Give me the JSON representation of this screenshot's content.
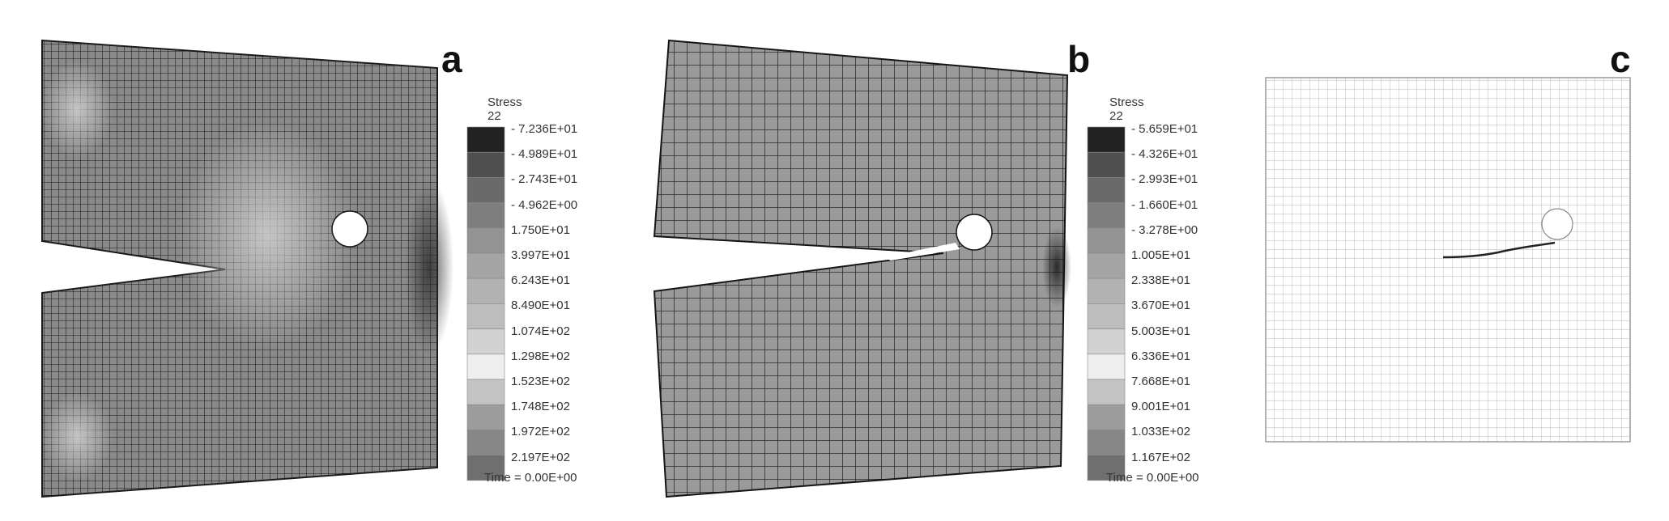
{
  "panels": [
    {
      "label": "a",
      "legend": {
        "title": "Stress 22",
        "values": [
          "- 7.236E+01",
          "- 4.989E+01",
          "- 2.743E+01",
          "- 4.962E+00",
          "1.750E+01",
          "3.997E+01",
          "6.243E+01",
          "8.490E+01",
          "1.074E+02",
          "1.298E+02",
          "1.523E+02",
          "1.748E+02",
          "1.972E+02",
          "2.197E+02"
        ],
        "time": "Time = 0.00E+00"
      }
    },
    {
      "label": "b",
      "legend": {
        "title": "Stress 22",
        "values": [
          "- 5.659E+01",
          "- 4.326E+01",
          "- 2.993E+01",
          "- 1.660E+01",
          "- 3.278E+00",
          "1.005E+01",
          "2.338E+01",
          "3.670E+01",
          "5.003E+01",
          "6.336E+01",
          "7.668E+01",
          "9.001E+01",
          "1.033E+02",
          "1.167E+02"
        ],
        "time": "Time = 0.00E+00"
      }
    },
    {
      "label": "c"
    }
  ],
  "colors": {
    "legend_steps": [
      "#222222",
      "#505050",
      "#6a6a6a",
      "#7e7e7e",
      "#939393",
      "#a4a4a4",
      "#b2b2b2",
      "#bdbdbd",
      "#d2d2d2",
      "#eeeeee",
      "#c4c4c4",
      "#9c9c9c",
      "#878787",
      "#6f6f6f"
    ],
    "mesh_fill_dark": "#6e6e6e",
    "mesh_fill_light": "#9a9a9a",
    "mesh_line": "#1a1a1a",
    "mesh_c_line": "#b8b8b8"
  }
}
